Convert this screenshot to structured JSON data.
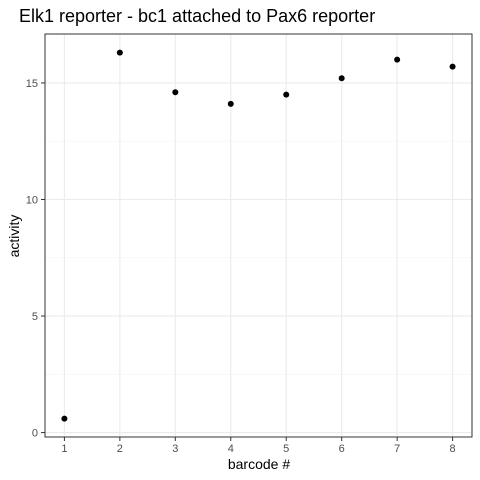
{
  "chart_data": {
    "type": "scatter",
    "title": "Elk1 reporter - bc1 attached to Pax6 reporter",
    "xlabel": "barcode #",
    "ylabel": "activity",
    "x": [
      1,
      2,
      3,
      4,
      5,
      6,
      7,
      8
    ],
    "y": [
      0.6,
      16.3,
      14.6,
      14.1,
      14.5,
      15.2,
      16.0,
      15.7
    ],
    "x_ticks": [
      "1",
      "2",
      "3",
      "4",
      "5",
      "6",
      "7",
      "8"
    ],
    "y_ticks": [
      "0",
      "5",
      "10",
      "15"
    ],
    "y_tick_values": [
      0,
      5,
      10,
      15
    ],
    "xlim": [
      0.65,
      8.35
    ],
    "ylim": [
      -0.19,
      17.1
    ],
    "grid": true,
    "legend": "none",
    "colors": {
      "points": "#000000",
      "panel_border": "#333333",
      "grid_major": "#ebebeb",
      "grid_minor": "#f5f5f5",
      "tick_text": "#4d4d4d"
    }
  }
}
